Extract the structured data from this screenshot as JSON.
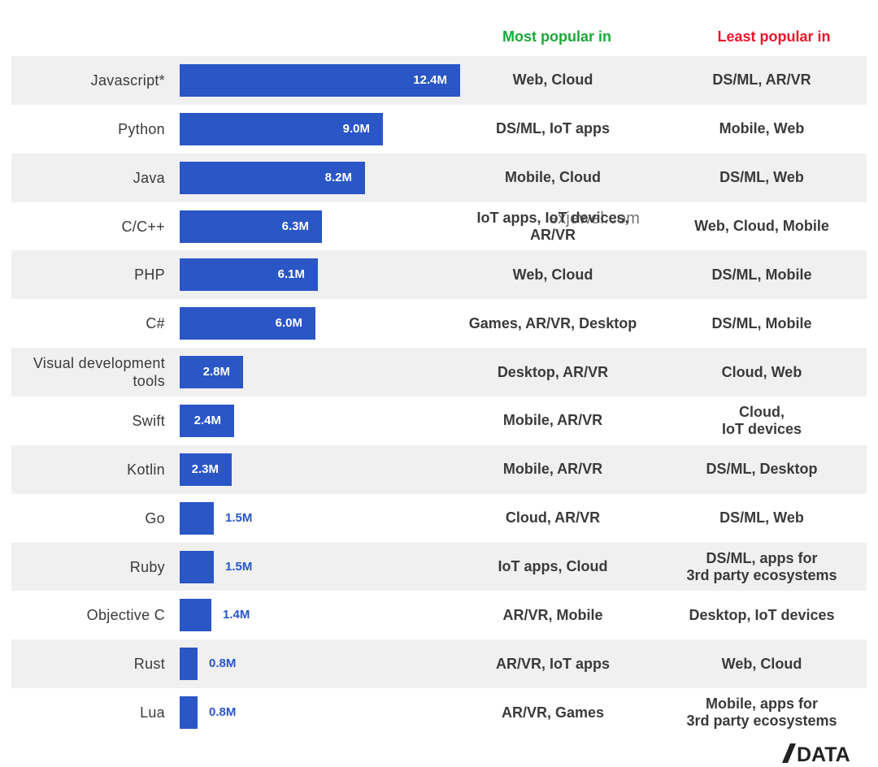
{
  "headers": {
    "most_popular": "Most popular in",
    "least_popular": "Least popular in"
  },
  "colors": {
    "bar": "#2a56c6",
    "most_header": "#1aa83a",
    "least_header": "#e8162b",
    "row_shade": "#f0f0f0"
  },
  "chart_data": {
    "type": "bar",
    "orientation": "horizontal",
    "categories": [
      "Javascript*",
      "Python",
      "Java",
      "C/C++",
      "PHP",
      "C#",
      "Visual development\ntools",
      "Swift",
      "Kotlin",
      "Go",
      "Ruby",
      "Objective C",
      "Rust",
      "Lua"
    ],
    "values": [
      12.4,
      9.0,
      8.2,
      6.3,
      6.1,
      6.0,
      2.8,
      2.4,
      2.3,
      1.5,
      1.5,
      1.4,
      0.8,
      0.8
    ],
    "value_labels": [
      "12.4M",
      "9.0M",
      "8.2M",
      "6.3M",
      "6.1M",
      "6.0M",
      "2.8M",
      "2.4M",
      "2.3M",
      "1.5M",
      "1.5M",
      "1.4M",
      "0.8M",
      "0.8M"
    ],
    "most_popular_in": [
      "Web, Cloud",
      "DS/ML, IoT apps",
      "Mobile, Cloud",
      "IoT apps, IoT devices,\nAR/VR",
      "Web, Cloud",
      "Games, AR/VR, Desktop",
      "Desktop, AR/VR",
      "Mobile, AR/VR",
      "Mobile, AR/VR",
      "Cloud, AR/VR",
      "IoT apps, Cloud",
      "AR/VR, Mobile",
      "AR/VR, IoT apps",
      "AR/VR, Games"
    ],
    "least_popular_in": [
      "DS/ML, AR/VR",
      "Mobile, Web",
      "DS/ML, Web",
      "Web, Cloud, Mobile",
      "DS/ML, Mobile",
      "DS/ML, Mobile",
      "Cloud, Web",
      "Cloud,\nIoT devices",
      "DS/ML, Desktop",
      "DS/ML, Web",
      "DS/ML, apps for\n3rd party ecosystems",
      "Desktop, IoT devices",
      "Web, Cloud",
      "Mobile, apps for\n3rd party ecosystems"
    ],
    "xlim": [
      0,
      12.4
    ]
  },
  "watermark": "sxjewel.com",
  "logo": "/DATA"
}
